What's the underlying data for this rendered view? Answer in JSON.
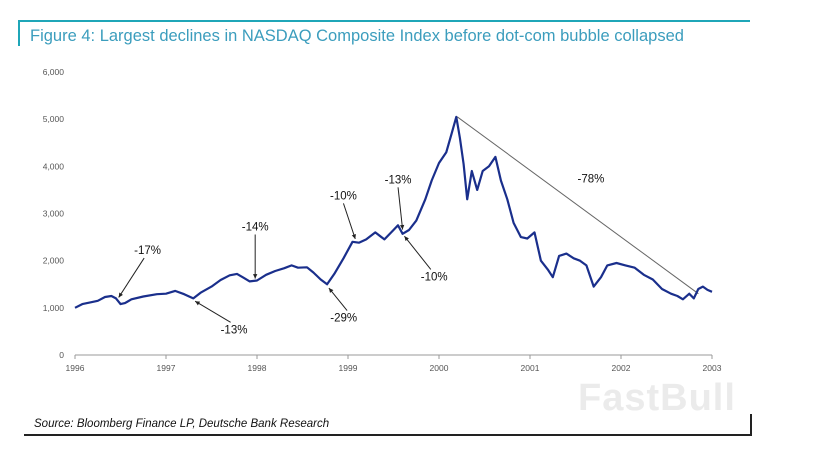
{
  "chart_data": {
    "type": "line",
    "title": "Figure 4: Largest declines in NASDAQ Composite Index before dot-com bubble collapsed",
    "source": "Source: Bloomberg Finance LP, Deutsche Bank Research",
    "watermark": "FastBull",
    "xlim": [
      1996,
      2003
    ],
    "ylim": [
      0,
      6000
    ],
    "x_ticks": [
      "1996",
      "1997",
      "1998",
      "1999",
      "2000",
      "2001",
      "2002",
      "2003"
    ],
    "y_ticks": [
      "0",
      "1,000",
      "2,000",
      "3,000",
      "4,000",
      "5,000",
      "6,000"
    ],
    "grid": false,
    "series": [
      {
        "color": "#1a2f8c",
        "points": [
          [
            1996.0,
            1000
          ],
          [
            1996.08,
            1080
          ],
          [
            1996.16,
            1110
          ],
          [
            1996.25,
            1150
          ],
          [
            1996.33,
            1230
          ],
          [
            1996.4,
            1250
          ],
          [
            1996.45,
            1200
          ],
          [
            1996.5,
            1080
          ],
          [
            1996.55,
            1100
          ],
          [
            1996.62,
            1180
          ],
          [
            1996.75,
            1240
          ],
          [
            1996.9,
            1290
          ],
          [
            1997.0,
            1300
          ],
          [
            1997.1,
            1360
          ],
          [
            1997.2,
            1290
          ],
          [
            1997.3,
            1200
          ],
          [
            1997.38,
            1320
          ],
          [
            1997.5,
            1450
          ],
          [
            1997.6,
            1590
          ],
          [
            1997.7,
            1690
          ],
          [
            1997.78,
            1720
          ],
          [
            1997.85,
            1640
          ],
          [
            1997.92,
            1560
          ],
          [
            1998.0,
            1580
          ],
          [
            1998.1,
            1700
          ],
          [
            1998.2,
            1780
          ],
          [
            1998.3,
            1840
          ],
          [
            1998.38,
            1900
          ],
          [
            1998.45,
            1850
          ],
          [
            1998.55,
            1860
          ],
          [
            1998.62,
            1750
          ],
          [
            1998.7,
            1600
          ],
          [
            1998.77,
            1500
          ],
          [
            1998.85,
            1720
          ],
          [
            1998.95,
            2050
          ],
          [
            1999.05,
            2400
          ],
          [
            1999.12,
            2380
          ],
          [
            1999.2,
            2450
          ],
          [
            1999.3,
            2600
          ],
          [
            1999.4,
            2450
          ],
          [
            1999.5,
            2650
          ],
          [
            1999.55,
            2750
          ],
          [
            1999.6,
            2570
          ],
          [
            1999.67,
            2650
          ],
          [
            1999.75,
            2850
          ],
          [
            1999.85,
            3300
          ],
          [
            1999.92,
            3700
          ],
          [
            2000.0,
            4070
          ],
          [
            2000.08,
            4300
          ],
          [
            2000.14,
            4700
          ],
          [
            2000.19,
            5049
          ],
          [
            2000.23,
            4600
          ],
          [
            2000.27,
            4050
          ],
          [
            2000.31,
            3300
          ],
          [
            2000.36,
            3900
          ],
          [
            2000.42,
            3500
          ],
          [
            2000.48,
            3900
          ],
          [
            2000.55,
            4000
          ],
          [
            2000.62,
            4200
          ],
          [
            2000.68,
            3700
          ],
          [
            2000.75,
            3300
          ],
          [
            2000.82,
            2800
          ],
          [
            2000.9,
            2500
          ],
          [
            2000.97,
            2470
          ],
          [
            2001.05,
            2600
          ],
          [
            2001.12,
            2000
          ],
          [
            2001.2,
            1800
          ],
          [
            2001.25,
            1650
          ],
          [
            2001.32,
            2100
          ],
          [
            2001.4,
            2150
          ],
          [
            2001.48,
            2050
          ],
          [
            2001.55,
            2000
          ],
          [
            2001.62,
            1900
          ],
          [
            2001.7,
            1450
          ],
          [
            2001.78,
            1650
          ],
          [
            2001.85,
            1900
          ],
          [
            2001.95,
            1950
          ],
          [
            2002.05,
            1900
          ],
          [
            2002.15,
            1850
          ],
          [
            2002.25,
            1700
          ],
          [
            2002.35,
            1600
          ],
          [
            2002.45,
            1400
          ],
          [
            2002.55,
            1300
          ],
          [
            2002.62,
            1250
          ],
          [
            2002.68,
            1180
          ],
          [
            2002.75,
            1300
          ],
          [
            2002.8,
            1200
          ],
          [
            2002.85,
            1400
          ],
          [
            2002.9,
            1450
          ],
          [
            2002.95,
            1380
          ],
          [
            2003.0,
            1340
          ]
        ]
      }
    ],
    "annotations": [
      {
        "text": "-17%",
        "x": 1996.65,
        "y": 2140,
        "arrow_to": [
          1996.48,
          1220
        ],
        "align": "start"
      },
      {
        "text": "-13%",
        "x": 1997.6,
        "y": 460,
        "arrow_to": [
          1997.32,
          1140
        ],
        "align": "start"
      },
      {
        "text": "-14%",
        "x": 1997.98,
        "y": 2640,
        "arrow_to": [
          1997.98,
          1620
        ],
        "align": "middle"
      },
      {
        "text": "-10%",
        "x": 1998.95,
        "y": 3300,
        "arrow_to": [
          1999.08,
          2460
        ],
        "align": "middle"
      },
      {
        "text": "-13%",
        "x": 1999.55,
        "y": 3640,
        "arrow_to": [
          1999.6,
          2660
        ],
        "align": "middle"
      },
      {
        "text": "-29%",
        "x": 1999.1,
        "y": 710,
        "arrow_to": [
          1998.79,
          1420
        ],
        "align": "end"
      },
      {
        "text": "-10%",
        "x": 1999.8,
        "y": 1580,
        "arrow_to": [
          1999.62,
          2520
        ],
        "align": "start"
      },
      {
        "text": "-78%",
        "x": 2001.67,
        "y": 3660,
        "arrow_to": null,
        "align": "middle"
      }
    ],
    "trend_line": {
      "from": [
        2000.2,
        5050
      ],
      "to": [
        2002.85,
        1300
      ]
    }
  }
}
